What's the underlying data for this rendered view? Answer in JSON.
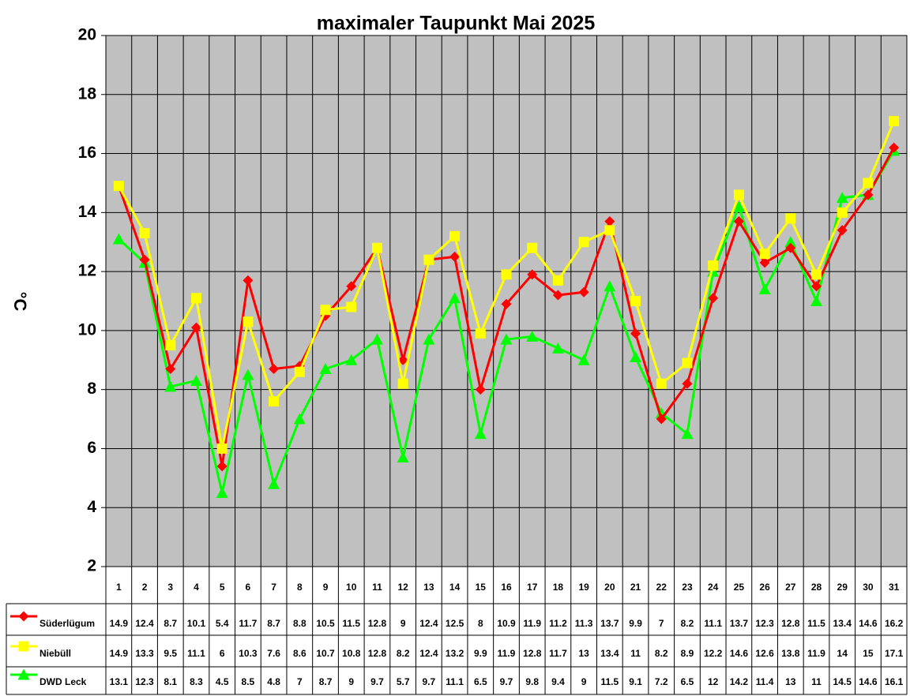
{
  "chart_data": {
    "type": "line",
    "title": "maximaler Taupunkt Mai 2025",
    "y_label": "°C",
    "categories": [
      "1",
      "2",
      "3",
      "4",
      "5",
      "6",
      "7",
      "8",
      "9",
      "10",
      "11",
      "12",
      "13",
      "14",
      "15",
      "16",
      "17",
      "18",
      "19",
      "20",
      "21",
      "22",
      "23",
      "24",
      "25",
      "26",
      "27",
      "28",
      "29",
      "30",
      "31"
    ],
    "series": [
      {
        "name": "Süderlügum",
        "color": "#ff0000",
        "marker": "diamond",
        "values": [
          14.9,
          12.4,
          8.7,
          10.1,
          5.4,
          11.7,
          8.7,
          8.8,
          10.5,
          11.5,
          12.8,
          9,
          12.4,
          12.5,
          8,
          10.9,
          11.9,
          11.2,
          11.3,
          13.7,
          9.9,
          7,
          8.2,
          11.1,
          13.7,
          12.3,
          12.8,
          11.5,
          13.4,
          14.6,
          16.2
        ]
      },
      {
        "name": "Niebüll",
        "color": "#ffff00",
        "marker": "square",
        "values": [
          14.9,
          13.3,
          9.5,
          11.1,
          6,
          10.3,
          7.6,
          8.6,
          10.7,
          10.8,
          12.8,
          8.2,
          12.4,
          13.2,
          9.9,
          11.9,
          12.8,
          11.7,
          13,
          13.4,
          11,
          8.2,
          8.9,
          12.2,
          14.6,
          12.6,
          13.8,
          11.9,
          14,
          15,
          17.1
        ]
      },
      {
        "name": "DWD Leck",
        "color": "#00ff00",
        "marker": "triangle",
        "values": [
          13.1,
          12.3,
          8.1,
          8.3,
          4.5,
          8.5,
          4.8,
          7,
          8.7,
          9,
          9.7,
          5.7,
          9.7,
          11.1,
          6.5,
          9.7,
          9.8,
          9.4,
          9,
          11.5,
          9.1,
          7.2,
          6.5,
          12,
          14.2,
          11.4,
          13,
          11,
          14.5,
          14.6,
          16.1
        ]
      }
    ],
    "ylim": [
      2,
      20
    ],
    "yticks": [
      2,
      4,
      6,
      8,
      10,
      12,
      14,
      16,
      18,
      20
    ],
    "grid": true,
    "plot_background": "#c0c0c0"
  }
}
